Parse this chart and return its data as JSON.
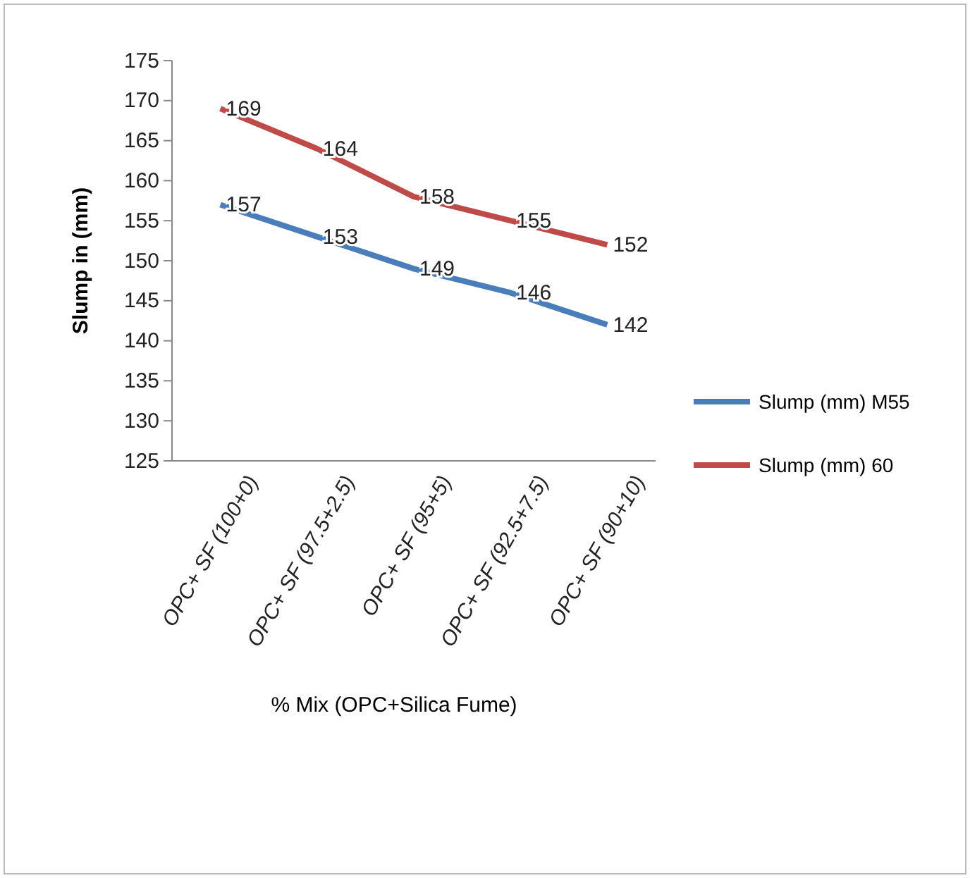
{
  "chart_data": {
    "type": "line",
    "xlabel": "% Mix (OPC+Silica Fume)",
    "ylabel": "Slump in (mm)",
    "categories": [
      "OPC+ SF (100+0)",
      "OPC+ SF (97.5+2.5)",
      "OPC+ SF (95+5)",
      "OPC+ SF (92.5+7.5)",
      "OPC+ SF (90+10)"
    ],
    "series": [
      {
        "name": "Slump (mm) M55",
        "color": "#4a7ebb",
        "values": [
          157,
          153,
          149,
          146,
          142
        ]
      },
      {
        "name": "Slump (mm) 60",
        "color": "#be4b48",
        "values": [
          169,
          164,
          158,
          155,
          152
        ]
      }
    ],
    "ylim": [
      125,
      175
    ],
    "yticks": [
      125,
      130,
      135,
      140,
      145,
      150,
      155,
      160,
      165,
      170,
      175
    ],
    "data_labels": true,
    "legend": "right",
    "grid": false,
    "marker": "none",
    "line_style": "solid"
  }
}
